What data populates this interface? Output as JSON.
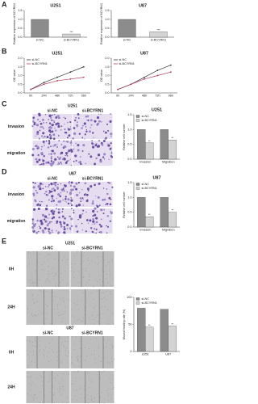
{
  "panel_labels": [
    "A",
    "B",
    "C",
    "D",
    "E"
  ],
  "image_panels": [
    {
      "title": "U251",
      "columns": [
        "si-NC",
        "si-BCYRN1"
      ],
      "rows": [
        "invasion",
        "migration"
      ]
    },
    {
      "title": "U87",
      "columns": [
        "si-NC",
        "si-BCYRN1"
      ],
      "rows": [
        "invasion",
        "migration"
      ]
    },
    {
      "title": "U251",
      "columns": [
        "si-NC",
        "si-BCYRN1"
      ],
      "rows": [
        "0H",
        "24H"
      ]
    },
    {
      "title": "U87",
      "columns": [
        "si-NC",
        "si-BCYRN1"
      ],
      "rows": [
        "0H",
        "24H"
      ]
    }
  ],
  "chart_data": [
    {
      "type": "bar",
      "title": "U251",
      "ylabel": "Relative expression of BCYRN1",
      "categories": [
        "si-NC",
        "si-BCYRN1"
      ],
      "values": [
        1.0,
        0.18
      ],
      "colors": [
        "#8c8c8c",
        "#d4d4d4"
      ],
      "significance": [
        null,
        "***"
      ],
      "ylim": [
        0,
        1.5
      ],
      "yticks": [
        {
          "value": 0,
          "label": "0.0"
        },
        {
          "value": 0.5,
          "label": "0.5"
        },
        {
          "value": 1,
          "label": "1.0"
        },
        {
          "value": 1.5,
          "label": "1.5"
        }
      ]
    },
    {
      "type": "bar",
      "title": "U87",
      "ylabel": "Relative expression of BCYRN1",
      "categories": [
        "si-NC",
        "si-BCYRN1"
      ],
      "values": [
        1.0,
        0.3
      ],
      "colors": [
        "#8c8c8c",
        "#d4d4d4"
      ],
      "significance": [
        null,
        "***"
      ],
      "ylim": [
        0,
        1.5
      ],
      "yticks": [
        {
          "value": 0,
          "label": "0.0"
        },
        {
          "value": 0.5,
          "label": "0.5"
        },
        {
          "value": 1,
          "label": "1.0"
        },
        {
          "value": 1.5,
          "label": "1.5"
        }
      ]
    },
    {
      "type": "line",
      "title": "U251",
      "ylabel": "OD value",
      "categories": [
        "0h",
        "24h",
        "48h",
        "72h",
        "96h"
      ],
      "series": [
        {
          "name": "si-NC",
          "color": "#333333",
          "values": [
            0.2,
            0.6,
            0.9,
            1.2,
            1.5
          ]
        },
        {
          "name": "si-BCYRN1",
          "color": "#b0405a",
          "values": [
            0.2,
            0.5,
            0.7,
            0.8,
            0.9
          ]
        }
      ],
      "ylim": [
        0,
        2
      ],
      "yticks": [
        {
          "value": 0,
          "label": "0.0"
        },
        {
          "value": 0.5,
          "label": "0.5"
        },
        {
          "value": 1,
          "label": "1.0"
        },
        {
          "value": 1.5,
          "label": "1.5"
        },
        {
          "value": 2,
          "label": "2.0"
        }
      ]
    },
    {
      "type": "line",
      "title": "U87",
      "ylabel": "OD value",
      "categories": [
        "0h",
        "24h",
        "48h",
        "72h",
        "96h"
      ],
      "series": [
        {
          "name": "si-NC",
          "color": "#333333",
          "values": [
            0.2,
            0.5,
            0.9,
            1.3,
            1.6
          ]
        },
        {
          "name": "si-BCYRN1",
          "color": "#b0405a",
          "values": [
            0.2,
            0.5,
            0.8,
            1.0,
            1.2
          ]
        }
      ],
      "ylim": [
        0,
        2
      ],
      "yticks": [
        {
          "value": 0,
          "label": "0.0"
        },
        {
          "value": 0.5,
          "label": "0.5"
        },
        {
          "value": 1,
          "label": "1.0"
        },
        {
          "value": 1.5,
          "label": "1.5"
        },
        {
          "value": 2,
          "label": "2.0"
        }
      ]
    },
    {
      "type": "bar",
      "title": "U251",
      "ylabel": "Relative cell number",
      "categories": [
        "Invasion",
        "Migration"
      ],
      "series": [
        {
          "name": "si-NC",
          "color": "#8c8c8c",
          "values": [
            1.0,
            1.0
          ],
          "significance": [
            null,
            null
          ]
        },
        {
          "name": "si-BCYRN1",
          "color": "#d4d4d4",
          "values": [
            0.55,
            0.65
          ],
          "significance": [
            "**",
            "**"
          ]
        }
      ],
      "ylim": [
        0,
        1.5
      ],
      "yticks": [
        {
          "value": 0,
          "label": "0.0"
        },
        {
          "value": 0.5,
          "label": "0.5"
        },
        {
          "value": 1,
          "label": "1.0"
        },
        {
          "value": 1.5,
          "label": "1.5"
        }
      ]
    },
    {
      "type": "bar",
      "title": "U87",
      "ylabel": "Relative cell number",
      "categories": [
        "Invasion",
        "Migration"
      ],
      "series": [
        {
          "name": "si-NC",
          "color": "#8c8c8c",
          "values": [
            1.0,
            1.0
          ],
          "significance": [
            null,
            null
          ]
        },
        {
          "name": "si-BCYRN1",
          "color": "#d4d4d4",
          "values": [
            0.35,
            0.5
          ],
          "significance": [
            "**",
            "**"
          ]
        }
      ],
      "ylim": [
        0,
        1.5
      ],
      "yticks": [
        {
          "value": 0,
          "label": "0.0"
        },
        {
          "value": 0.5,
          "label": "0.5"
        },
        {
          "value": 1,
          "label": "1.0"
        },
        {
          "value": 1.5,
          "label": "1.5"
        }
      ]
    },
    {
      "type": "bar",
      "ylabel": "Wound healing rate (%)",
      "categories": [
        "U251",
        "U87"
      ],
      "series": [
        {
          "name": "si-NC",
          "color": "#8c8c8c",
          "values": [
            80,
            78
          ],
          "significance": [
            null,
            null
          ]
        },
        {
          "name": "si-BCYRN1",
          "color": "#d4d4d4",
          "values": [
            45,
            47
          ],
          "significance": [
            "**",
            "**"
          ]
        }
      ],
      "ylim": [
        0,
        100
      ],
      "yticks": [
        0,
        50,
        100
      ]
    }
  ]
}
